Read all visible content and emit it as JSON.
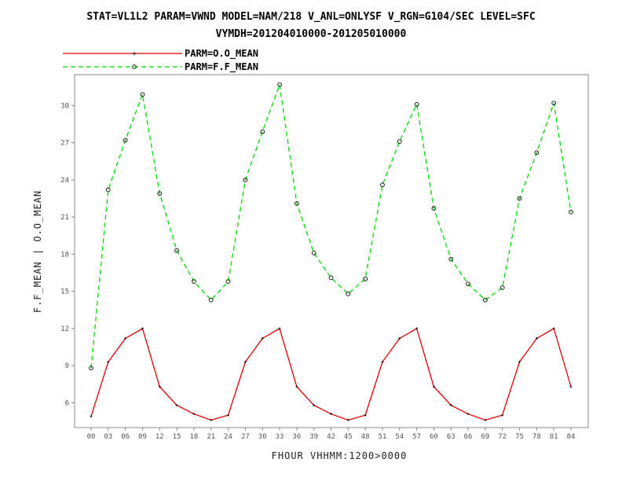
{
  "header": {
    "title_line1": "STAT=VL1L2 PARAM=VWND MODEL=NAM/218 V_ANL=ONLYSF V_RGN=G104/SEC LEVEL=SFC",
    "title_line2": "VYMDH=201204010000-201205010000"
  },
  "colors": {
    "obs": "#dd0000",
    "fcst": "#00dd00",
    "frame": "#888888"
  },
  "chart_data": {
    "type": "line",
    "title": "STAT=VL1L2 PARAM=VWND MODEL=NAM/218 V_ANL=ONLYSF V_RGN=G104/SEC LEVEL=SFC VYMDH=201204010000-201205010000",
    "xlabel": "FHOUR VHHMM:1200>0000",
    "ylabel": "F.F_MEAN | O.O_MEAN",
    "categories": [
      "00",
      "03",
      "06",
      "09",
      "12",
      "15",
      "18",
      "21",
      "24",
      "27",
      "30",
      "33",
      "36",
      "39",
      "42",
      "45",
      "48",
      "51",
      "54",
      "57",
      "60",
      "63",
      "66",
      "69",
      "72",
      "75",
      "78",
      "81",
      "84"
    ],
    "y_ticks": [
      "6",
      "9",
      "12",
      "15",
      "18",
      "21",
      "24",
      "27",
      "30"
    ],
    "ylim": [
      4,
      32.5
    ],
    "grid": false,
    "legend_position": "top-left",
    "series": [
      {
        "name": "PARM=O.O_MEAN",
        "style": "solid",
        "marker": "plus",
        "color": "#dd0000",
        "values": [
          4.9,
          9.3,
          11.2,
          12.0,
          7.3,
          5.8,
          5.1,
          4.6,
          5.0,
          9.3,
          11.2,
          12.0,
          7.3,
          5.8,
          5.1,
          4.6,
          5.0,
          9.3,
          11.2,
          12.0,
          7.3,
          5.8,
          5.1,
          4.6,
          5.0,
          9.3,
          11.2,
          12.0,
          7.3
        ]
      },
      {
        "name": "PARM=F.F_MEAN",
        "style": "dashed",
        "marker": "circle",
        "color": "#00dd00",
        "values": [
          8.8,
          23.2,
          27.2,
          30.9,
          22.9,
          18.3,
          15.8,
          14.3,
          15.8,
          24.0,
          27.9,
          31.7,
          22.1,
          18.1,
          16.1,
          14.8,
          16.0,
          23.6,
          27.1,
          30.1,
          21.7,
          17.6,
          15.6,
          14.3,
          15.3,
          22.5,
          26.2,
          30.2,
          21.4
        ]
      }
    ]
  }
}
